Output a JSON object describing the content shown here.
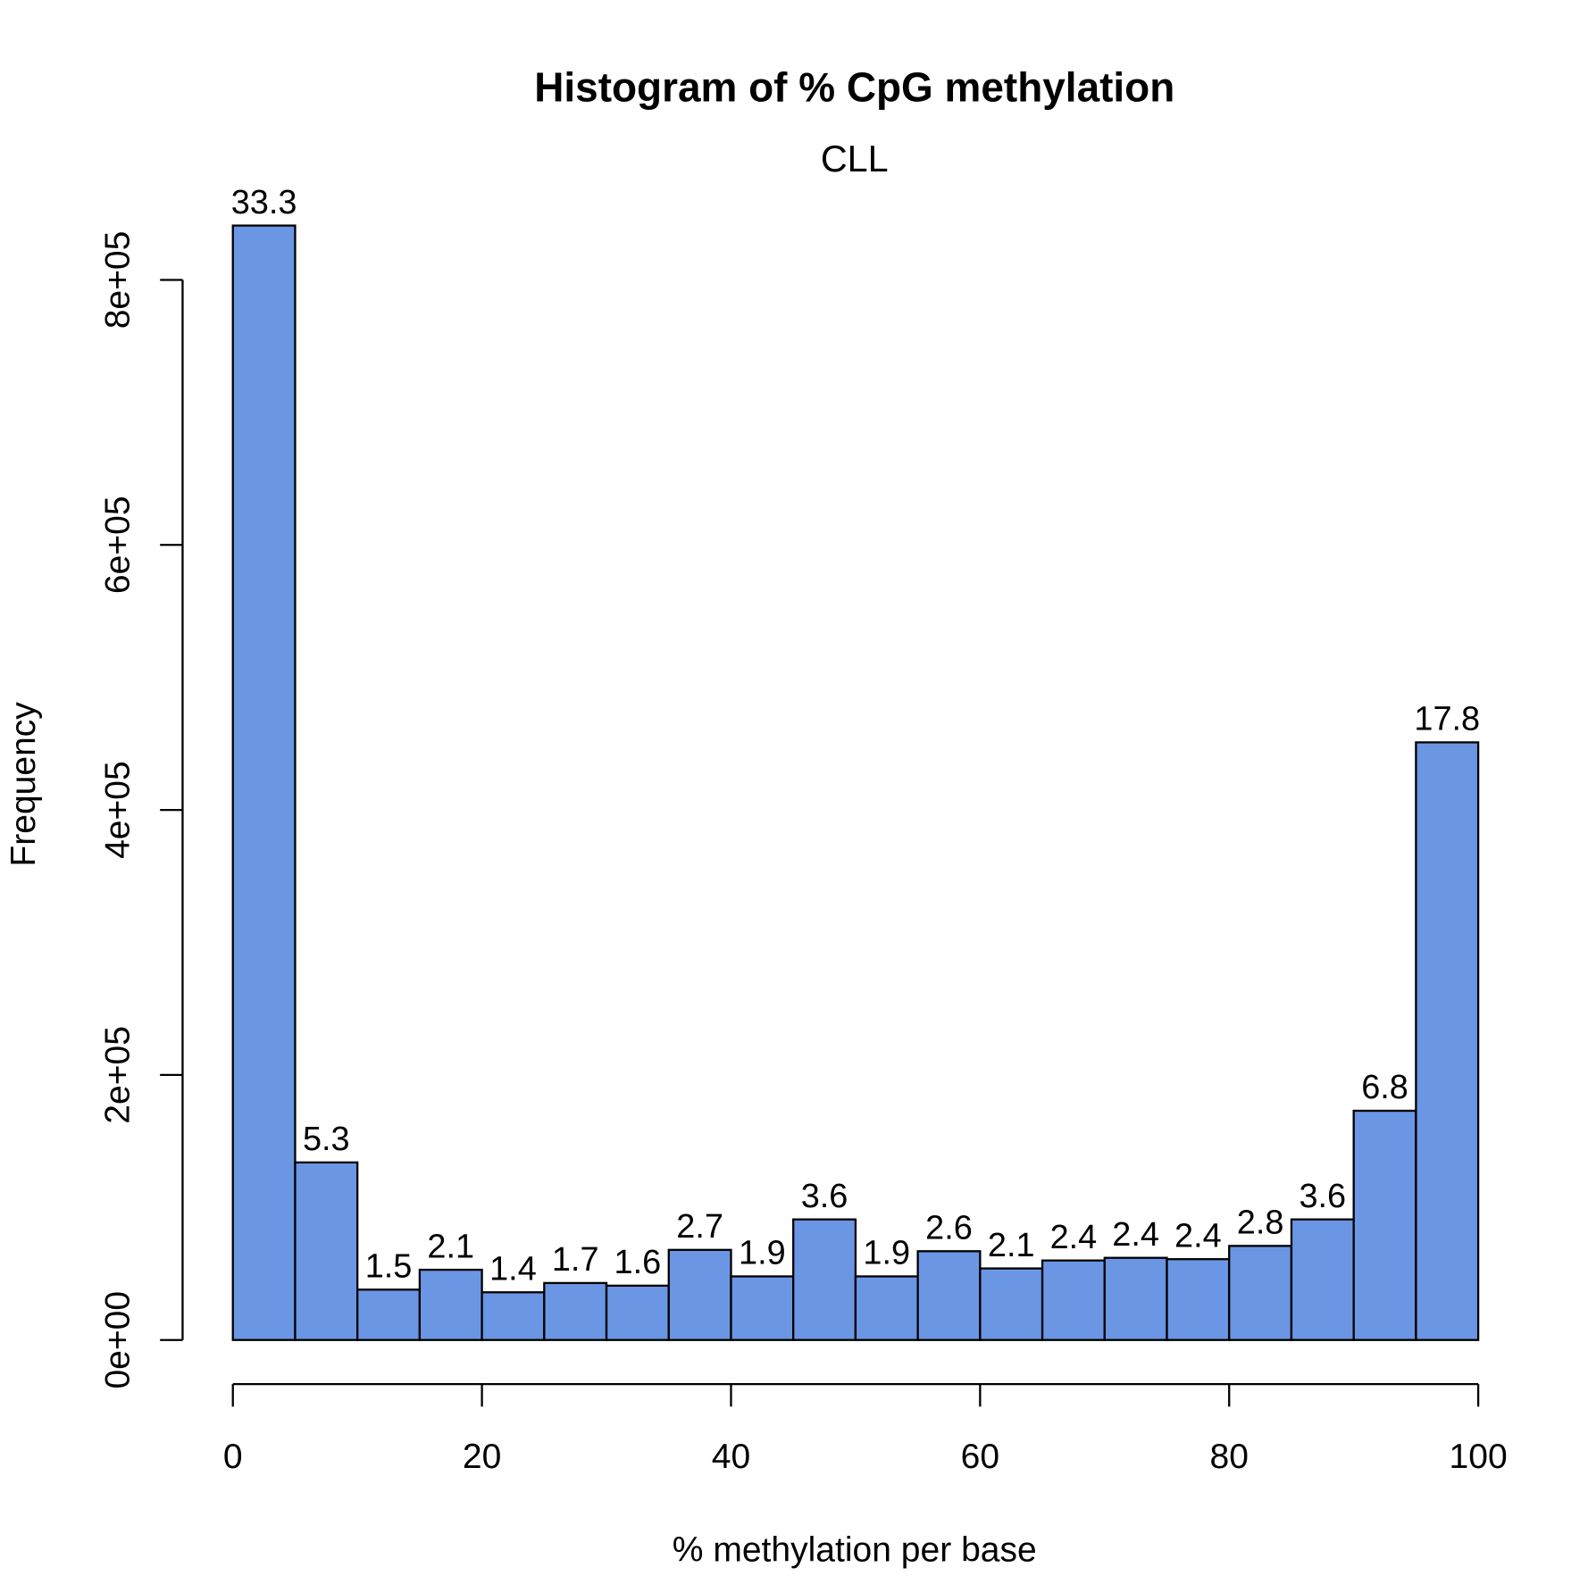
{
  "chart_data": {
    "type": "bar",
    "title": "Histogram of % CpG methylation",
    "subtitle": "CLL",
    "xlabel": "% methylation per base",
    "ylabel": "Frequency",
    "xlim": [
      0,
      100
    ],
    "ylim": [
      0,
      800000
    ],
    "x_ticks": [
      0,
      20,
      40,
      60,
      80,
      100
    ],
    "x_tick_labels": [
      "0",
      "20",
      "40",
      "60",
      "80",
      "100"
    ],
    "y_ticks": [
      0,
      200000,
      400000,
      600000,
      800000
    ],
    "y_tick_labels": [
      "0e+00",
      "2e+05",
      "4e+05",
      "6e+05",
      "8e+05"
    ],
    "bin_edges": [
      0,
      5,
      10,
      15,
      20,
      25,
      30,
      35,
      40,
      45,
      50,
      55,
      60,
      65,
      70,
      75,
      80,
      85,
      90,
      95,
      100
    ],
    "values": [
      841000,
      134000,
      38000,
      53000,
      36000,
      43000,
      41000,
      68000,
      48000,
      91000,
      48000,
      67000,
      54000,
      60000,
      62000,
      61000,
      71000,
      91000,
      173000,
      451000
    ],
    "bar_labels": [
      "33.3",
      "5.3",
      "1.5",
      "2.1",
      "1.4",
      "1.7",
      "1.6",
      "2.7",
      "1.9",
      "3.6",
      "1.9",
      "2.6",
      "2.1",
      "2.4",
      "2.4",
      "2.4",
      "2.8",
      "3.6",
      "6.8",
      "17.8"
    ],
    "bar_color": "#6b96e4",
    "grid": false
  }
}
